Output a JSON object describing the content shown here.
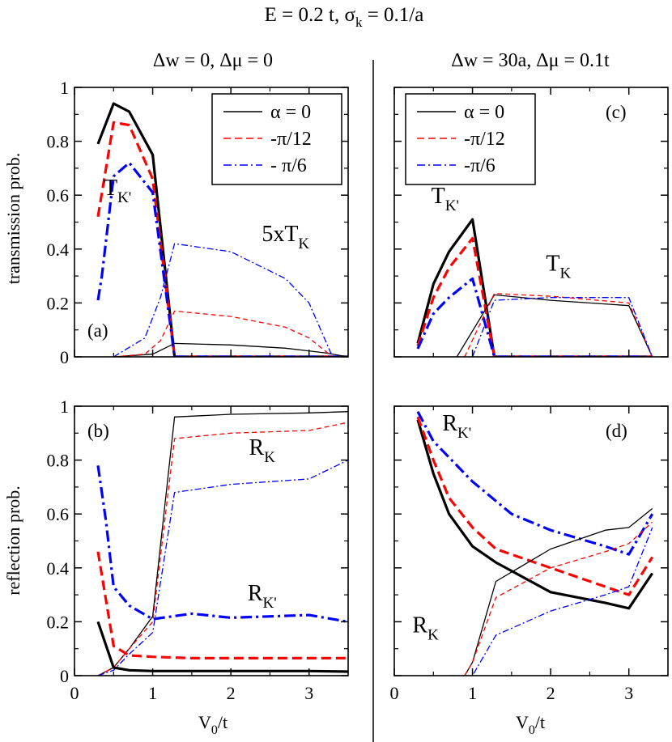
{
  "title": "E = 0.2 t, σ",
  "title_sub": "k",
  "title_end": " = 0.1/a",
  "column_titles": {
    "left": "Δw = 0, Δμ = 0",
    "right": "Δw = 30a, Δμ = 0.1t"
  },
  "ylabels": {
    "top": "transmission prob.",
    "bottom": "reflection prob."
  },
  "xlabel": {
    "main": "V",
    "sub": "0",
    "end": "/t"
  },
  "legend": [
    {
      "label": "α = 0",
      "color": "#000000",
      "dash": ""
    },
    {
      "label": "-π/12",
      "color": "#ff0000",
      "dash": "9,5"
    },
    {
      "label": "- π/6",
      "color": "#0000ff",
      "dash": "10,4,2,4"
    }
  ],
  "legend_right": [
    {
      "label": "α = 0",
      "color": "#000000",
      "dash": ""
    },
    {
      "label": "-π/12",
      "color": "#ff0000",
      "dash": "9,5"
    },
    {
      "label": "-π/6",
      "color": "#0000ff",
      "dash": "10,4,2,4"
    }
  ],
  "chart_data": [
    {
      "panel": "(a)",
      "type": "line",
      "xlim": [
        0,
        3.5
      ],
      "ylim": [
        0,
        1
      ],
      "xticks": [
        0,
        1,
        2,
        3
      ],
      "yticks": [
        0,
        0.2,
        0.4,
        0.6,
        0.8,
        1
      ],
      "ytick_labels": [
        "0",
        "0.2",
        "0.4",
        "0.6",
        "0.8",
        "1"
      ],
      "annotations": [
        {
          "text": "T",
          "sub": "K'",
          "x": 0.55,
          "y": 0.6
        },
        {
          "text": "5xT",
          "sub": "K",
          "x": 2.7,
          "y": 0.43
        }
      ],
      "series": [
        {
          "name": "α = 0, T_K'",
          "color": "#000000",
          "dash": "",
          "width": 3.2,
          "points": [
            [
              0.3,
              0.79
            ],
            [
              0.5,
              0.94
            ],
            [
              0.7,
              0.91
            ],
            [
              1.0,
              0.75
            ],
            [
              1.28,
              0.0
            ],
            [
              3.5,
              0.0
            ]
          ]
        },
        {
          "name": "-π/12, T_K'",
          "color": "#ff0000",
          "dash": "12,6",
          "width": 3.2,
          "points": [
            [
              0.3,
              0.52
            ],
            [
              0.5,
              0.87
            ],
            [
              0.7,
              0.86
            ],
            [
              1.0,
              0.66
            ],
            [
              1.28,
              0.0
            ],
            [
              3.5,
              0.0
            ]
          ]
        },
        {
          "name": "-π/6, T_K'",
          "color": "#0000ff",
          "dash": "14,5,3,5",
          "width": 3.2,
          "points": [
            [
              0.3,
              0.21
            ],
            [
              0.35,
              0.3
            ],
            [
              0.5,
              0.67
            ],
            [
              0.7,
              0.72
            ],
            [
              1.0,
              0.61
            ],
            [
              1.28,
              0.0
            ],
            [
              3.5,
              0.0
            ]
          ]
        },
        {
          "name": "α = 0, 5xT_K",
          "color": "#000000",
          "dash": "",
          "width": 1.3,
          "points": [
            [
              0.5,
              0.0
            ],
            [
              1.0,
              0.01
            ],
            [
              1.28,
              0.05
            ],
            [
              2.0,
              0.044
            ],
            [
              2.7,
              0.032
            ],
            [
              3.2,
              0.015
            ],
            [
              3.5,
              0.0
            ]
          ]
        },
        {
          "name": "-π/12, 5xT_K",
          "color": "#ff0000",
          "dash": "6,4",
          "width": 1.3,
          "points": [
            [
              0.5,
              0.0
            ],
            [
              0.9,
              0.01
            ],
            [
              1.1,
              0.06
            ],
            [
              1.28,
              0.17
            ],
            [
              2.0,
              0.15
            ],
            [
              2.7,
              0.11
            ],
            [
              3.0,
              0.07
            ],
            [
              3.3,
              0.0
            ]
          ]
        },
        {
          "name": "-π/6, 5xT_K",
          "color": "#0000ff",
          "dash": "8,3,2,3",
          "width": 1.3,
          "points": [
            [
              0.5,
              0.0
            ],
            [
              0.9,
              0.07
            ],
            [
              1.1,
              0.22
            ],
            [
              1.28,
              0.42
            ],
            [
              2.0,
              0.39
            ],
            [
              2.7,
              0.29
            ],
            [
              3.0,
              0.2
            ],
            [
              3.3,
              0.0
            ]
          ]
        }
      ]
    },
    {
      "panel": "(b)",
      "type": "line",
      "xlim": [
        0,
        3.5
      ],
      "ylim": [
        0,
        1
      ],
      "xticks": [
        0,
        1,
        2,
        3
      ],
      "yticks": [
        0,
        0.2,
        0.4,
        0.6,
        0.8,
        1
      ],
      "xtick_labels": [
        "0",
        "1",
        "2",
        "3"
      ],
      "ytick_labels": [
        "0",
        "0.2",
        "0.4",
        "0.6",
        "0.8",
        "1"
      ],
      "annotations": [
        {
          "text": "R",
          "sub": "K",
          "x": 2.4,
          "y": 0.82
        },
        {
          "text": "R",
          "sub": "K'",
          "x": 2.4,
          "y": 0.28
        }
      ],
      "series": [
        {
          "name": "α = 0, R_K",
          "color": "#000000",
          "dash": "",
          "width": 1.3,
          "points": [
            [
              0.3,
              0.0
            ],
            [
              0.5,
              0.03
            ],
            [
              0.7,
              0.1
            ],
            [
              1.0,
              0.22
            ],
            [
              1.28,
              0.96
            ],
            [
              2.0,
              0.97
            ],
            [
              3.0,
              0.975
            ],
            [
              3.5,
              0.98
            ]
          ]
        },
        {
          "name": "-π/12, R_K",
          "color": "#ff0000",
          "dash": "6,4",
          "width": 1.3,
          "points": [
            [
              0.3,
              0.0
            ],
            [
              0.5,
              0.03
            ],
            [
              0.7,
              0.1
            ],
            [
              1.0,
              0.2
            ],
            [
              1.28,
              0.88
            ],
            [
              2.0,
              0.9
            ],
            [
              3.0,
              0.91
            ],
            [
              3.5,
              0.94
            ]
          ]
        },
        {
          "name": "-π/6, R_K",
          "color": "#0000ff",
          "dash": "8,3,2,3",
          "width": 1.3,
          "points": [
            [
              0.3,
              0.0
            ],
            [
              0.5,
              0.02
            ],
            [
              0.7,
              0.08
            ],
            [
              1.0,
              0.16
            ],
            [
              1.28,
              0.68
            ],
            [
              2.0,
              0.71
            ],
            [
              3.0,
              0.73
            ],
            [
              3.5,
              0.8
            ]
          ]
        },
        {
          "name": "α = 0, R_K'",
          "color": "#000000",
          "dash": "",
          "width": 3.2,
          "points": [
            [
              0.3,
              0.2
            ],
            [
              0.5,
              0.03
            ],
            [
              0.7,
              0.02
            ],
            [
              1.0,
              0.017
            ],
            [
              2.0,
              0.017
            ],
            [
              3.0,
              0.017
            ],
            [
              3.5,
              0.015
            ]
          ]
        },
        {
          "name": "-π/12, R_K'",
          "color": "#ff0000",
          "dash": "12,6",
          "width": 3.2,
          "points": [
            [
              0.3,
              0.46
            ],
            [
              0.5,
              0.11
            ],
            [
              0.7,
              0.075
            ],
            [
              1.0,
              0.07
            ],
            [
              1.5,
              0.065
            ],
            [
              2.0,
              0.065
            ],
            [
              3.0,
              0.065
            ],
            [
              3.5,
              0.065
            ]
          ]
        },
        {
          "name": "-π/6, R_K'",
          "color": "#0000ff",
          "dash": "14,5,3,5",
          "width": 3.2,
          "points": [
            [
              0.3,
              0.78
            ],
            [
              0.4,
              0.58
            ],
            [
              0.5,
              0.33
            ],
            [
              0.7,
              0.26
            ],
            [
              1.0,
              0.21
            ],
            [
              1.5,
              0.23
            ],
            [
              2.0,
              0.215
            ],
            [
              3.0,
              0.225
            ],
            [
              3.5,
              0.2
            ]
          ]
        }
      ]
    },
    {
      "panel": "(c)",
      "type": "line",
      "xlim": [
        0,
        3.5
      ],
      "ylim": [
        0,
        1
      ],
      "xticks": [
        0,
        1,
        2,
        3
      ],
      "yticks": [
        0,
        0.2,
        0.4,
        0.6,
        0.8,
        1
      ],
      "annotations": [
        {
          "text": "T",
          "sub": "K'",
          "x": 0.65,
          "y": 0.57
        },
        {
          "text": "T",
          "sub": "K",
          "x": 2.1,
          "y": 0.32
        }
      ],
      "series": [
        {
          "name": "α = 0, T_K'",
          "color": "#000000",
          "dash": "",
          "width": 3.2,
          "points": [
            [
              0.3,
              0.05
            ],
            [
              0.5,
              0.27
            ],
            [
              0.7,
              0.39
            ],
            [
              1.0,
              0.51
            ],
            [
              1.28,
              0.0
            ],
            [
              3.3,
              0.0
            ]
          ]
        },
        {
          "name": "-π/12, T_K'",
          "color": "#ff0000",
          "dash": "12,6",
          "width": 3.2,
          "points": [
            [
              0.3,
              0.04
            ],
            [
              0.5,
              0.22
            ],
            [
              0.7,
              0.33
            ],
            [
              1.0,
              0.44
            ],
            [
              1.28,
              0.0
            ],
            [
              3.3,
              0.0
            ]
          ]
        },
        {
          "name": "-π/6, T_K'",
          "color": "#0000ff",
          "dash": "14,5,3,5",
          "width": 3.2,
          "points": [
            [
              0.3,
              0.03
            ],
            [
              0.5,
              0.16
            ],
            [
              0.7,
              0.22
            ],
            [
              1.0,
              0.29
            ],
            [
              1.28,
              0.0
            ],
            [
              3.3,
              0.0
            ]
          ]
        },
        {
          "name": "α = 0, T_K",
          "color": "#000000",
          "dash": "",
          "width": 1.3,
          "points": [
            [
              0.8,
              0.0
            ],
            [
              1.28,
              0.23
            ],
            [
              2.0,
              0.21
            ],
            [
              3.0,
              0.19
            ],
            [
              3.3,
              0.0
            ]
          ]
        },
        {
          "name": "-π/12, T_K",
          "color": "#ff0000",
          "dash": "6,4",
          "width": 1.3,
          "points": [
            [
              0.9,
              0.0
            ],
            [
              1.28,
              0.235
            ],
            [
              2.0,
              0.225
            ],
            [
              3.0,
              0.2
            ],
            [
              3.3,
              0.0
            ]
          ]
        },
        {
          "name": "-π/6, T_K",
          "color": "#0000ff",
          "dash": "8,3,2,3",
          "width": 1.3,
          "points": [
            [
              1.0,
              0.0
            ],
            [
              1.28,
              0.21
            ],
            [
              2.0,
              0.22
            ],
            [
              3.0,
              0.22
            ],
            [
              3.3,
              0.0
            ]
          ]
        }
      ]
    },
    {
      "panel": "(d)",
      "type": "line",
      "xlim": [
        0,
        3.5
      ],
      "ylim": [
        0,
        1
      ],
      "xticks": [
        0,
        1,
        2,
        3
      ],
      "yticks": [
        0,
        0.2,
        0.4,
        0.6,
        0.8,
        1
      ],
      "xtick_labels": [
        "0",
        "1",
        "2",
        "3"
      ],
      "annotations": [
        {
          "text": "R",
          "sub": "K'",
          "x": 0.8,
          "y": 0.91
        },
        {
          "text": "R",
          "sub": "K",
          "x": 0.4,
          "y": 0.16
        }
      ],
      "series": [
        {
          "name": "α = 0, R_K'",
          "color": "#000000",
          "dash": "",
          "width": 3.2,
          "points": [
            [
              0.3,
              0.95
            ],
            [
              0.5,
              0.75
            ],
            [
              0.7,
              0.6
            ],
            [
              1.0,
              0.48
            ],
            [
              1.3,
              0.42
            ],
            [
              2.0,
              0.31
            ],
            [
              2.7,
              0.27
            ],
            [
              3.0,
              0.25
            ],
            [
              3.3,
              0.38
            ]
          ]
        },
        {
          "name": "-π/12, R_K'",
          "color": "#ff0000",
          "dash": "12,6",
          "width": 3.2,
          "points": [
            [
              0.3,
              0.96
            ],
            [
              0.5,
              0.8
            ],
            [
              0.7,
              0.66
            ],
            [
              1.0,
              0.55
            ],
            [
              1.3,
              0.47
            ],
            [
              2.0,
              0.4
            ],
            [
              2.7,
              0.33
            ],
            [
              3.0,
              0.3
            ],
            [
              3.3,
              0.44
            ]
          ]
        },
        {
          "name": "-π/6, R_K'",
          "color": "#0000ff",
          "dash": "14,5,3,5",
          "width": 3.2,
          "points": [
            [
              0.3,
              0.98
            ],
            [
              0.5,
              0.87
            ],
            [
              1.0,
              0.72
            ],
            [
              1.5,
              0.6
            ],
            [
              2.0,
              0.54
            ],
            [
              2.7,
              0.48
            ],
            [
              3.0,
              0.45
            ],
            [
              3.3,
              0.6
            ]
          ]
        },
        {
          "name": "α = 0, R_K",
          "color": "#000000",
          "dash": "",
          "width": 1.3,
          "points": [
            [
              0.9,
              0.0
            ],
            [
              1.0,
              0.05
            ],
            [
              1.3,
              0.35
            ],
            [
              2.0,
              0.47
            ],
            [
              2.7,
              0.54
            ],
            [
              3.0,
              0.55
            ],
            [
              3.3,
              0.62
            ]
          ]
        },
        {
          "name": "-π/12, R_K",
          "color": "#ff0000",
          "dash": "6,4",
          "width": 1.3,
          "points": [
            [
              0.9,
              0.0
            ],
            [
              1.0,
              0.05
            ],
            [
              1.3,
              0.29
            ],
            [
              2.0,
              0.4
            ],
            [
              2.7,
              0.46
            ],
            [
              3.0,
              0.49
            ],
            [
              3.3,
              0.57
            ]
          ]
        },
        {
          "name": "-π/6, R_K",
          "color": "#0000ff",
          "dash": "8,3,2,3",
          "width": 1.3,
          "points": [
            [
              0.7,
              0.0
            ],
            [
              1.0,
              0.0
            ],
            [
              1.3,
              0.15
            ],
            [
              2.0,
              0.24
            ],
            [
              2.7,
              0.3
            ],
            [
              3.0,
              0.33
            ],
            [
              3.3,
              0.55
            ]
          ]
        }
      ]
    }
  ]
}
